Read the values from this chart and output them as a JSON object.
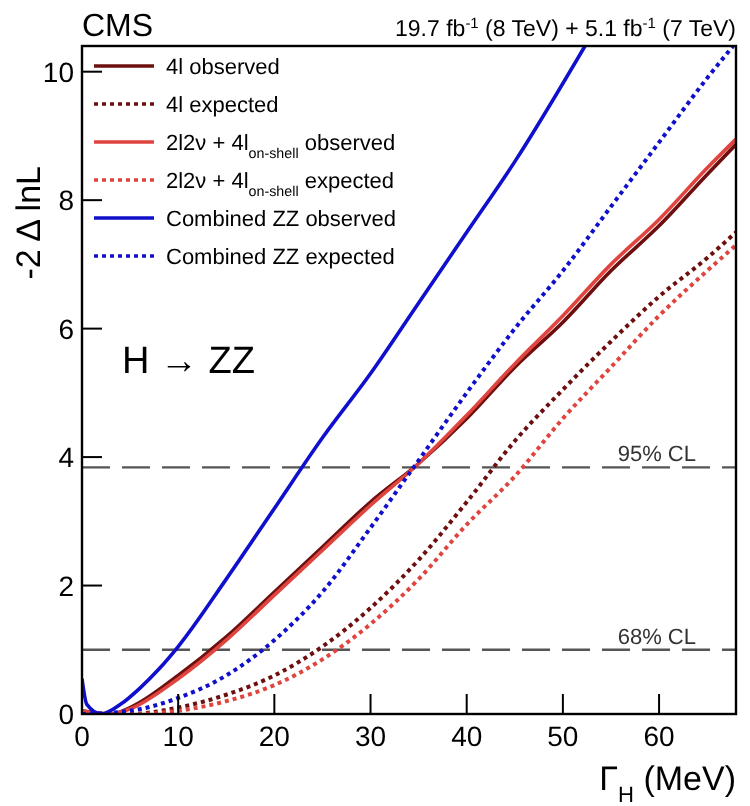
{
  "chart_data": {
    "type": "line",
    "title": "CMS",
    "subtitle": "19.7 fb$^{-1}$ (8 TeV) + 5.1 fb$^{-1}$ (7 TeV)",
    "xlabel": "Γ$_{H}$ (MeV)",
    "ylabel": "-2 Δ lnL",
    "xlim": [
      0,
      68
    ],
    "ylim": [
      0,
      10.4
    ],
    "xticks": [
      0,
      10,
      20,
      30,
      40,
      50,
      60
    ],
    "yticks": [
      0,
      2,
      4,
      6,
      8,
      10
    ],
    "grid": false,
    "legend": "top left",
    "annotations": [
      "H → ZZ"
    ],
    "ref_lines": [
      {
        "axis": "y",
        "value": 3.84,
        "label": "95% CL",
        "color": "#555555",
        "line_style": "dashed"
      },
      {
        "axis": "y",
        "value": 1,
        "label": "68% CL",
        "color": "#555555",
        "line_style": "dashed"
      }
    ],
    "series": [
      {
        "name": "4l observed",
        "color": "#6e0f0f",
        "line_style": "solid",
        "x": [
          0,
          3,
          5,
          10,
          15,
          20,
          25,
          30,
          35,
          40,
          45,
          50,
          55,
          60,
          65,
          68
        ],
        "values": [
          0.05,
          0,
          0.1,
          0.6,
          1.2,
          1.9,
          2.6,
          3.3,
          3.9,
          4.6,
          5.4,
          6.1,
          6.9,
          7.6,
          8.4,
          8.87
        ]
      },
      {
        "name": "4l expected",
        "color": "#6e0f0f",
        "line_style": "dotted",
        "x": [
          0,
          5,
          10,
          15,
          20,
          25,
          30,
          35,
          40,
          45,
          50,
          55,
          60,
          65,
          68
        ],
        "values": [
          0,
          0,
          0.1,
          0.3,
          0.6,
          1.05,
          1.65,
          2.4,
          3.3,
          4.25,
          5.05,
          5.8,
          6.5,
          7.1,
          7.5
        ]
      },
      {
        "name": "2l2ν + 4l$_{on-shell}$ observed",
        "color": "#e0443e",
        "line_style": "solid",
        "x": [
          0,
          3,
          5,
          10,
          15,
          20,
          25,
          30,
          35,
          40,
          45,
          50,
          55,
          60,
          65,
          68
        ],
        "values": [
          0.05,
          0,
          0.08,
          0.55,
          1.15,
          1.85,
          2.55,
          3.25,
          3.9,
          4.65,
          5.45,
          6.2,
          7.0,
          7.7,
          8.5,
          8.95
        ]
      },
      {
        "name": "2l2ν + 4l$_{on-shell}$ expected",
        "color": "#e0443e",
        "line_style": "dotted",
        "x": [
          0,
          5,
          10,
          15,
          20,
          25,
          30,
          35,
          40,
          45,
          50,
          55,
          60,
          65,
          68
        ],
        "values": [
          0,
          0,
          0.05,
          0.2,
          0.45,
          0.85,
          1.4,
          2.1,
          2.95,
          3.7,
          4.6,
          5.4,
          6.2,
          6.9,
          7.3
        ]
      },
      {
        "name": "Combined ZZ observed",
        "color": "#1010cc",
        "line_style": "solid",
        "x": [
          0,
          0.5,
          2,
          4,
          6,
          8,
          10,
          15,
          20,
          25,
          30,
          35,
          40,
          45,
          52.3
        ],
        "values": [
          0.55,
          0.15,
          0,
          0.15,
          0.4,
          0.7,
          1.05,
          2.1,
          3.2,
          4.3,
          5.3,
          6.4,
          7.5,
          8.6,
          10.4
        ]
      },
      {
        "name": "Combined ZZ expected",
        "color": "#1010cc",
        "line_style": "dotted",
        "x": [
          0,
          5,
          10,
          15,
          20,
          25,
          30,
          35,
          40,
          45,
          50,
          55,
          60,
          65,
          67.7
        ],
        "values": [
          0,
          0.05,
          0.25,
          0.6,
          1.15,
          1.9,
          2.9,
          3.95,
          5.0,
          6.0,
          6.9,
          7.9,
          8.9,
          9.9,
          10.4
        ]
      }
    ]
  }
}
